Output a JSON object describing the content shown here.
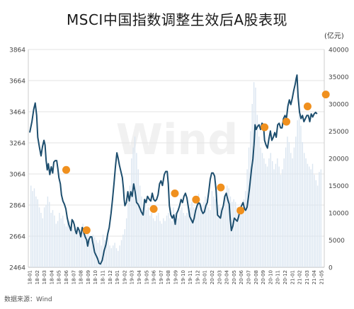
{
  "title": "MSCI中国指数调整生效后A股表现",
  "unit_label": "(亿元)",
  "source": "数据来源：Wind",
  "watermark": "Wind",
  "colors": {
    "line": "#1d4e6e",
    "bars": "#dbe6f1",
    "markers": "#f0901e",
    "grid": "#e3e3e3",
    "axis_text": "#444444"
  },
  "chart_data": {
    "type": "line+bar",
    "title": "MSCI中国指数调整生效后A股表现",
    "left_axis": {
      "ticks": [
        2464,
        2664,
        2864,
        3064,
        3264,
        3464,
        3664,
        3864
      ],
      "ylim": [
        2464,
        3864
      ]
    },
    "right_axis": {
      "label": "(亿元)",
      "ticks": [
        0,
        5000,
        10000,
        15000,
        20000,
        25000,
        30000,
        35000,
        40000
      ],
      "ylim": [
        0,
        40000
      ]
    },
    "x_tick_labels": [
      "18-01",
      "18-02",
      "18-03",
      "18-04",
      "18-05",
      "18-06",
      "18-07",
      "18-08",
      "18-09",
      "18-10",
      "18-11",
      "18-12",
      "19-01",
      "19-02",
      "19-03",
      "19-04",
      "19-05",
      "19-06",
      "19-07",
      "19-08",
      "19-09",
      "19-10",
      "19-11",
      "19-12",
      "20-01",
      "20-02",
      "20-03",
      "20-04",
      "20-05",
      "20-06",
      "20-07",
      "20-08",
      "20-09",
      "20-10",
      "20-11",
      "20-12",
      "21-01",
      "21-02",
      "21-03",
      "21-04",
      "21-05"
    ],
    "index_line": [
      [
        0,
        3330
      ],
      [
        0.3,
        3400
      ],
      [
        0.55,
        3480
      ],
      [
        0.75,
        3520
      ],
      [
        0.95,
        3440
      ],
      [
        1.1,
        3300
      ],
      [
        1.35,
        3230
      ],
      [
        1.55,
        3180
      ],
      [
        1.75,
        3240
      ],
      [
        1.95,
        3280
      ],
      [
        2.1,
        3250
      ],
      [
        2.25,
        3150
      ],
      [
        2.4,
        3090
      ],
      [
        2.55,
        3130
      ],
      [
        2.75,
        3060
      ],
      [
        2.95,
        3110
      ],
      [
        3.15,
        3070
      ],
      [
        3.3,
        3140
      ],
      [
        3.5,
        3150
      ],
      [
        3.7,
        3150
      ],
      [
        3.85,
        3100
      ],
      [
        4.0,
        3040
      ],
      [
        4.2,
        3000
      ],
      [
        4.35,
        2930
      ],
      [
        4.55,
        2890
      ],
      [
        4.75,
        2870
      ],
      [
        4.95,
        2840
      ],
      [
        5.15,
        2780
      ],
      [
        5.35,
        2740
      ],
      [
        5.5,
        2720
      ],
      [
        5.65,
        2700
      ],
      [
        5.8,
        2770
      ],
      [
        5.95,
        2760
      ],
      [
        6.1,
        2740
      ],
      [
        6.25,
        2700
      ],
      [
        6.4,
        2680
      ],
      [
        6.6,
        2720
      ],
      [
        6.8,
        2700
      ],
      [
        7.0,
        2660
      ],
      [
        7.2,
        2720
      ],
      [
        7.4,
        2690
      ],
      [
        7.6,
        2660
      ],
      [
        7.8,
        2640
      ],
      [
        7.95,
        2600
      ],
      [
        8.1,
        2640
      ],
      [
        8.3,
        2660
      ],
      [
        8.5,
        2660
      ],
      [
        8.7,
        2610
      ],
      [
        8.9,
        2560
      ],
      [
        9.1,
        2540
      ],
      [
        9.3,
        2520
      ],
      [
        9.5,
        2490
      ],
      [
        9.7,
        2485
      ],
      [
        9.95,
        2510
      ],
      [
        10.2,
        2570
      ],
      [
        10.45,
        2610
      ],
      [
        10.7,
        2680
      ],
      [
        10.9,
        2720
      ],
      [
        11.15,
        2810
      ],
      [
        11.35,
        2900
      ],
      [
        11.55,
        3000
      ],
      [
        11.75,
        3110
      ],
      [
        11.95,
        3200
      ],
      [
        12.1,
        3170
      ],
      [
        12.3,
        3120
      ],
      [
        12.5,
        3080
      ],
      [
        12.7,
        3040
      ],
      [
        12.85,
        2970
      ],
      [
        12.95,
        2900
      ],
      [
        13.05,
        2860
      ],
      [
        13.25,
        2880
      ],
      [
        13.45,
        2950
      ],
      [
        13.65,
        2890
      ],
      [
        13.85,
        2950
      ],
      [
        14.05,
        2920
      ],
      [
        14.25,
        3000
      ],
      [
        14.45,
        2950
      ],
      [
        14.65,
        2880
      ],
      [
        14.85,
        2870
      ],
      [
        15.05,
        2850
      ],
      [
        15.3,
        2820
      ],
      [
        15.55,
        2800
      ],
      [
        15.75,
        2900
      ],
      [
        15.95,
        2880
      ],
      [
        16.15,
        2920
      ],
      [
        16.4,
        2900
      ],
      [
        16.6,
        2890
      ],
      [
        16.8,
        2940
      ],
      [
        17.0,
        2900
      ],
      [
        17.2,
        2890
      ],
      [
        17.4,
        2900
      ],
      [
        17.6,
        2930
      ],
      [
        17.8,
        3000
      ],
      [
        18.0,
        3020
      ],
      [
        18.2,
        2990
      ],
      [
        18.45,
        3060
      ],
      [
        18.65,
        3080
      ],
      [
        18.85,
        3080
      ],
      [
        19.0,
        3000
      ],
      [
        19.15,
        2860
      ],
      [
        19.35,
        2800
      ],
      [
        19.55,
        2780
      ],
      [
        19.75,
        2800
      ],
      [
        19.95,
        2740
      ],
      [
        20.15,
        2810
      ],
      [
        20.35,
        2830
      ],
      [
        20.55,
        2860
      ],
      [
        20.75,
        2900
      ],
      [
        20.95,
        2880
      ],
      [
        21.15,
        2920
      ],
      [
        21.35,
        2940
      ],
      [
        21.55,
        2910
      ],
      [
        21.75,
        2850
      ],
      [
        21.95,
        2790
      ],
      [
        22.15,
        2770
      ],
      [
        22.35,
        2750
      ],
      [
        22.55,
        2780
      ],
      [
        22.75,
        2830
      ],
      [
        22.95,
        2860
      ],
      [
        23.15,
        2880
      ],
      [
        23.35,
        2870
      ],
      [
        23.55,
        2830
      ],
      [
        23.75,
        2810
      ],
      [
        23.95,
        2820
      ],
      [
        24.15,
        2860
      ],
      [
        24.35,
        2880
      ],
      [
        24.55,
        2950
      ],
      [
        24.75,
        3030
      ],
      [
        24.95,
        3070
      ],
      [
        25.15,
        3070
      ],
      [
        25.35,
        3050
      ],
      [
        25.55,
        2960
      ],
      [
        25.75,
        2800
      ],
      [
        25.95,
        2790
      ],
      [
        26.15,
        2780
      ],
      [
        26.35,
        2830
      ],
      [
        26.55,
        2860
      ],
      [
        26.75,
        2920
      ],
      [
        26.95,
        2940
      ],
      [
        27.15,
        2900
      ],
      [
        27.35,
        2870
      ],
      [
        27.5,
        2770
      ],
      [
        27.65,
        2700
      ],
      [
        27.85,
        2730
      ],
      [
        28.05,
        2780
      ],
      [
        28.25,
        2770
      ],
      [
        28.45,
        2760
      ],
      [
        28.65,
        2790
      ],
      [
        28.85,
        2840
      ],
      [
        29.05,
        2860
      ],
      [
        29.25,
        2880
      ],
      [
        29.45,
        2840
      ],
      [
        29.6,
        2830
      ],
      [
        29.8,
        2850
      ],
      [
        30.0,
        2920
      ],
      [
        30.2,
        3000
      ],
      [
        30.4,
        3090
      ],
      [
        30.6,
        3160
      ],
      [
        30.75,
        3250
      ],
      [
        30.9,
        3380
      ],
      [
        31.05,
        3350
      ],
      [
        31.25,
        3370
      ],
      [
        31.45,
        3380
      ],
      [
        31.65,
        3350
      ],
      [
        31.85,
        3390
      ],
      [
        32.05,
        3380
      ],
      [
        32.2,
        3280
      ],
      [
        32.4,
        3250
      ],
      [
        32.6,
        3230
      ],
      [
        32.8,
        3290
      ],
      [
        33.0,
        3340
      ],
      [
        33.2,
        3280
      ],
      [
        33.4,
        3300
      ],
      [
        33.6,
        3330
      ],
      [
        33.8,
        3300
      ],
      [
        34.0,
        3380
      ],
      [
        34.2,
        3390
      ],
      [
        34.4,
        3360
      ],
      [
        34.6,
        3360
      ],
      [
        34.8,
        3420
      ],
      [
        35.0,
        3440
      ],
      [
        35.2,
        3420
      ],
      [
        35.4,
        3500
      ],
      [
        35.6,
        3540
      ],
      [
        35.8,
        3510
      ],
      [
        36.0,
        3550
      ],
      [
        36.2,
        3600
      ],
      [
        36.4,
        3640
      ],
      [
        36.55,
        3680
      ],
      [
        36.65,
        3700
      ],
      [
        36.8,
        3560
      ],
      [
        37.0,
        3460
      ],
      [
        37.2,
        3420
      ],
      [
        37.4,
        3440
      ],
      [
        37.6,
        3400
      ],
      [
        37.8,
        3420
      ],
      [
        38.0,
        3440
      ],
      [
        38.2,
        3440
      ],
      [
        38.4,
        3400
      ],
      [
        38.6,
        3450
      ],
      [
        38.8,
        3430
      ],
      [
        39.0,
        3450
      ],
      [
        39.2,
        3460
      ],
      [
        39.4,
        3450
      ]
    ],
    "turnover_bars": [
      15000,
      14000,
      14500,
      13000,
      12500,
      11000,
      10000,
      9000,
      11000,
      11500,
      13000,
      12000,
      10000,
      10500,
      9500,
      8000,
      8500,
      10000,
      9000,
      9500,
      8000,
      7500,
      9000,
      8500,
      8000,
      7000,
      6500,
      7500,
      7000,
      6000,
      6500,
      8000,
      7000,
      6000,
      6500,
      5500,
      5000,
      6000,
      5500,
      5000,
      4500,
      5000,
      4000,
      6000,
      5000,
      4500,
      5500,
      4000,
      3500,
      4000,
      4500,
      3500,
      3000,
      4000,
      5000,
      6000,
      7000,
      9000,
      12000,
      15000,
      20000,
      22000,
      24000,
      21000,
      18000,
      15000,
      13000,
      11000,
      12500,
      10500,
      11000,
      9500,
      10000,
      9000,
      8500,
      9500,
      10000,
      8500,
      8000,
      9000,
      8500,
      9500,
      10000,
      9000,
      8500,
      11000,
      10000,
      9500,
      9000,
      10500,
      11000,
      10000,
      9500,
      10000,
      10500,
      11000,
      12000,
      11000,
      10500,
      13000,
      13500,
      12000,
      11500,
      12000,
      13000,
      12500,
      11000,
      10500,
      14000,
      13000,
      12500,
      12000,
      11500,
      11000,
      10500,
      11000,
      13000,
      15000,
      14500,
      13000,
      12000,
      12500,
      12000,
      11000,
      10000,
      10500,
      11000,
      12500,
      14000,
      18000,
      22000,
      25000,
      30000,
      34000,
      33000,
      28000,
      24000,
      22000,
      21000,
      20000,
      19000,
      18500,
      20000,
      21000,
      19500,
      18000,
      19000,
      20000,
      18500,
      17000,
      18000,
      20000,
      22000,
      24000,
      23000,
      21000,
      20000,
      22000,
      24000,
      27000,
      28000,
      26000,
      23000,
      21000,
      20000,
      19000,
      18500,
      18000,
      19000,
      17000,
      16000,
      15000,
      17500,
      18000
    ],
    "markers": [
      {
        "x_month": 5,
        "value": 3090
      },
      {
        "x_month": 7.8,
        "value": 2702
      },
      {
        "x_month": 17.0,
        "value": 2839
      },
      {
        "x_month": 19.9,
        "value": 2939
      },
      {
        "x_month": 22.8,
        "value": 2899
      },
      {
        "x_month": 26.2,
        "value": 2977
      },
      {
        "x_month": 28.9,
        "value": 2829
      },
      {
        "x_month": 32.2,
        "value": 3364
      },
      {
        "x_month": 35.2,
        "value": 3400
      },
      {
        "x_month": 38.1,
        "value": 3498
      },
      {
        "x_month": 40.6,
        "value": 3575
      }
    ]
  }
}
